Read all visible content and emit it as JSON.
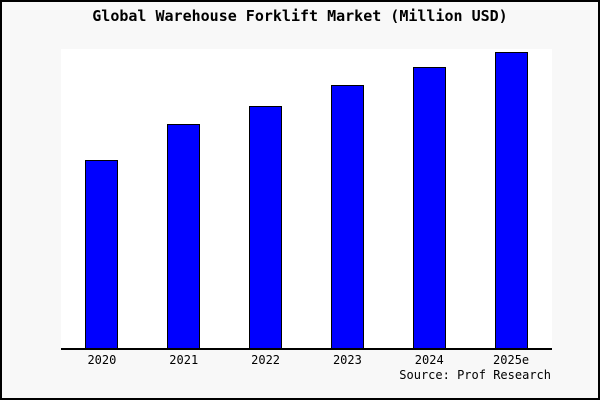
{
  "window": {
    "background_color": "#f8f8f8",
    "frame_color": "#000000"
  },
  "chart": {
    "title": "Global Warehouse Forklift Market (Million USD)",
    "source": "Source: Prof Research",
    "bar_color": "#0000ff",
    "bar_border_color": "#000000",
    "plot_background": "#ffffff",
    "axis_color": "#000000"
  },
  "chart_data": {
    "type": "bar",
    "title": "Global Warehouse Forklift Market (Million USD)",
    "categories": [
      "2020",
      "2021",
      "2022",
      "2023",
      "2024",
      "2025e"
    ],
    "values": [
      63,
      75,
      81,
      88,
      94,
      99
    ],
    "xlabel": "",
    "ylabel": "",
    "ylim": [
      0,
      100
    ],
    "grid": false,
    "legend": false,
    "y_axis_labels_visible": false,
    "annotations": [
      "Source: Prof Research"
    ]
  }
}
